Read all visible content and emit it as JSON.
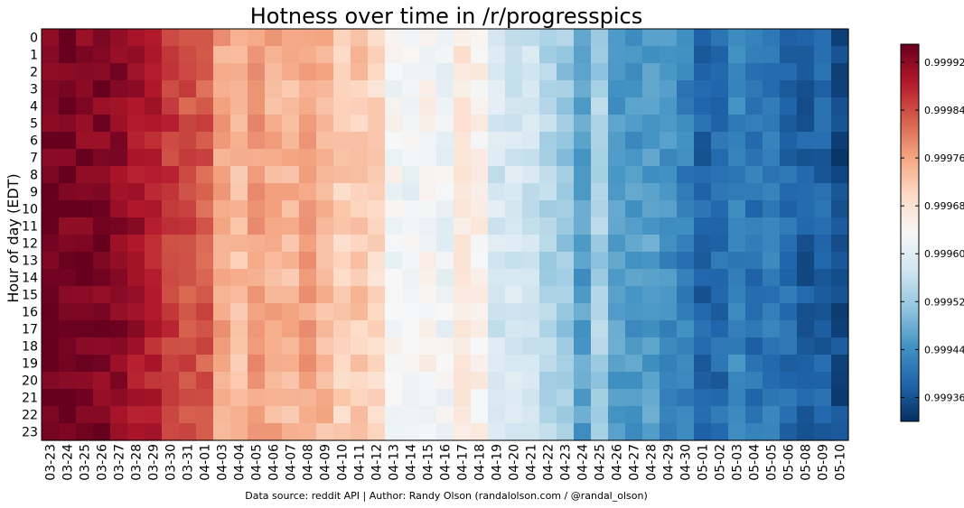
{
  "chart_data": {
    "type": "heatmap",
    "title": "Hotness over time in /r/progresspics",
    "ylabel": "Hour of day (EDT)",
    "xlabel": "",
    "x_categories": [
      "03-23",
      "03-24",
      "03-25",
      "03-26",
      "03-27",
      "03-28",
      "03-29",
      "03-30",
      "03-31",
      "04-01",
      "04-03",
      "04-04",
      "04-05",
      "04-06",
      "04-07",
      "04-08",
      "04-09",
      "04-10",
      "04-11",
      "04-12",
      "04-13",
      "04-14",
      "04-15",
      "04-16",
      "04-17",
      "04-18",
      "04-19",
      "04-20",
      "04-21",
      "04-22",
      "04-23",
      "04-24",
      "04-25",
      "04-26",
      "04-27",
      "04-28",
      "04-29",
      "04-30",
      "05-01",
      "05-02",
      "05-03",
      "05-04",
      "05-05",
      "05-06",
      "05-08",
      "05-09",
      "05-10"
    ],
    "y_categories": [
      "0",
      "1",
      "2",
      "3",
      "4",
      "5",
      "6",
      "7",
      "8",
      "9",
      "10",
      "11",
      "12",
      "13",
      "14",
      "15",
      "16",
      "17",
      "18",
      "19",
      "20",
      "21",
      "22",
      "23"
    ],
    "column_means": [
      0.99994,
      0.99994,
      0.99993,
      0.99993,
      0.99992,
      0.9999,
      0.99988,
      0.99986,
      0.99984,
      0.99983,
      0.99976,
      0.99973,
      0.99977,
      0.99975,
      0.99974,
      0.99976,
      0.99974,
      0.99971,
      0.99972,
      0.9997,
      0.99963,
      0.99962,
      0.99964,
      0.99962,
      0.99967,
      0.99965,
      0.99958,
      0.99958,
      0.99957,
      0.99954,
      0.99952,
      0.99946,
      0.99953,
      0.99946,
      0.99945,
      0.99946,
      0.99944,
      0.99942,
      0.99938,
      0.99939,
      0.99943,
      0.9994,
      0.99941,
      0.99939,
      0.99937,
      0.99938,
      0.99935
    ],
    "colorbar": {
      "min": 0.99932,
      "max": 0.99995,
      "ticks": [
        "0.99936",
        "0.99944",
        "0.99952",
        "0.99960",
        "0.99968",
        "0.99976",
        "0.99984",
        "0.99992"
      ]
    },
    "colormap_stops": [
      "#67001f",
      "#b2182b",
      "#d6604d",
      "#f4a582",
      "#fddbc7",
      "#f7f7f7",
      "#d1e5f0",
      "#92c5de",
      "#4393c3",
      "#2166ac",
      "#053061"
    ]
  },
  "footer": {
    "credit": "Data source: reddit API | Author: Randy Olson (randalolson.com / @randal_olson)"
  }
}
